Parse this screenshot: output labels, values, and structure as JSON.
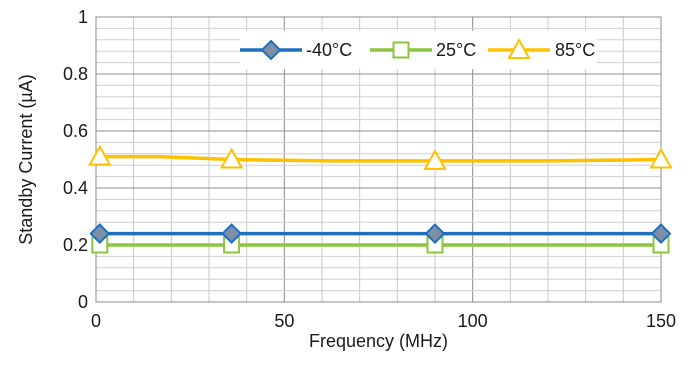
{
  "chart_data": {
    "type": "line",
    "xlabel": "Frequency (MHz)",
    "ylabel": "Standby Current (µA)",
    "xlim": [
      0,
      150
    ],
    "ylim": [
      0,
      1
    ],
    "x_ticks": [
      "0",
      "50",
      "100",
      "150"
    ],
    "y_ticks": [
      "0",
      "0.2",
      "0.4",
      "0.6",
      "0.8",
      "1"
    ],
    "grid": "major and minor",
    "legend_position": "top-right",
    "series": [
      {
        "name": "-40°C",
        "color": "#1f6fbf",
        "marker": "diamond",
        "marker_fill": "#7f8fa6",
        "x": [
          1,
          36,
          90,
          150
        ],
        "y": [
          0.24,
          0.24,
          0.24,
          0.24
        ]
      },
      {
        "name": "25°C",
        "color": "#8cc63f",
        "marker": "square",
        "marker_fill": "#ffffff",
        "x": [
          1,
          36,
          90,
          150
        ],
        "y": [
          0.2,
          0.2,
          0.2,
          0.2
        ]
      },
      {
        "name": "85°C",
        "color": "#ffc000",
        "marker": "triangle",
        "marker_fill": "#ffffff",
        "x": [
          1,
          17,
          36,
          63,
          90,
          120,
          150
        ],
        "y": [
          0.51,
          0.51,
          0.5,
          0.495,
          0.495,
          0.495,
          0.5
        ]
      }
    ]
  }
}
